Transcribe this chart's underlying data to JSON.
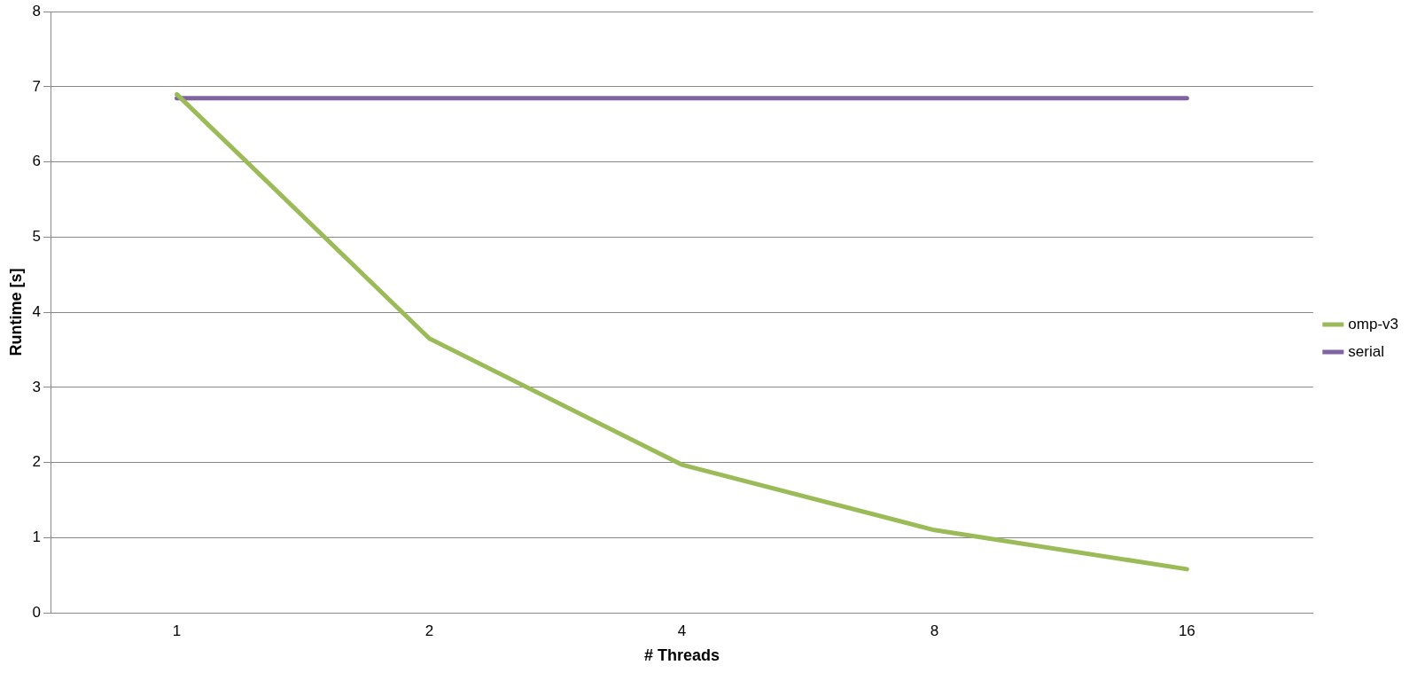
{
  "chart_data": {
    "type": "line",
    "xlabel": "# Threads",
    "ylabel": "Runtime [s]",
    "categories": [
      "1",
      "2",
      "4",
      "8",
      "16"
    ],
    "series": [
      {
        "name": "omp-v3",
        "color": "#9bbb59",
        "values": [
          6.9,
          3.65,
          1.97,
          1.1,
          0.58
        ]
      },
      {
        "name": "serial",
        "color": "#8064a2",
        "values": [
          6.85,
          6.85,
          6.85,
          6.85,
          6.85
        ]
      }
    ],
    "ylim": [
      0,
      8
    ],
    "yticks": [
      0,
      1,
      2,
      3,
      4,
      5,
      6,
      7,
      8
    ],
    "grid": "y",
    "legend": "right",
    "marker": "none",
    "line_style": "solid"
  }
}
